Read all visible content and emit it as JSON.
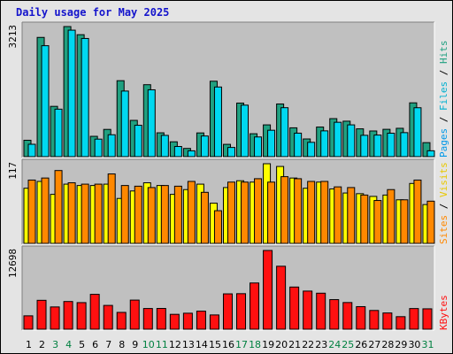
{
  "title": "Daily usage for May 2025",
  "chart_data": [
    {
      "type": "bar",
      "panel": "top",
      "categories": [
        "1",
        "2",
        "3",
        "4",
        "5",
        "6",
        "7",
        "8",
        "9",
        "10",
        "11",
        "12",
        "13",
        "14",
        "15",
        "16",
        "17",
        "18",
        "19",
        "20",
        "21",
        "22",
        "23",
        "24",
        "25",
        "26",
        "27",
        "28",
        "29",
        "30",
        "31"
      ],
      "series": [
        {
          "name": "Hits",
          "color": "#20a080",
          "values": [
            405,
            2945,
            1242,
            3213,
            3012,
            502,
            673,
            1876,
            896,
            1777,
            589,
            367,
            203,
            586,
            1863,
            304,
            1323,
            566,
            785,
            1301,
            712,
            437,
            731,
            939,
            876,
            687,
            634,
            675,
            700,
            1329,
            346
          ]
        },
        {
          "name": "Files",
          "color": "#00d8f0",
          "values": [
            306,
            2740,
            1173,
            3124,
            2919,
            433,
            541,
            1620,
            775,
            1651,
            525,
            251,
            144,
            510,
            1720,
            227,
            1272,
            486,
            652,
            1209,
            580,
            354,
            637,
            849,
            785,
            527,
            533,
            579,
            593,
            1208,
            145
          ]
        }
      ],
      "ylabel_max": "3213",
      "legend_label": "Pages / Files / Hits",
      "legend_colors": {
        "Pages": "#0098e8",
        "Files": "#00b0d0",
        "Hits": "#20a080"
      }
    },
    {
      "type": "bar",
      "panel": "middle",
      "categories": [
        "1",
        "2",
        "3",
        "4",
        "5",
        "6",
        "7",
        "8",
        "9",
        "10",
        "11",
        "12",
        "13",
        "14",
        "15",
        "16",
        "17",
        "18",
        "19",
        "20",
        "21",
        "22",
        "23",
        "24",
        "25",
        "26",
        "27",
        "28",
        "29",
        "30",
        "31"
      ],
      "series": [
        {
          "name": "Visits",
          "color": "#ffff00",
          "values": [
            81,
            91,
            72,
            87,
            85,
            85,
            87,
            66,
            77,
            89,
            85,
            72,
            79,
            87,
            59,
            82,
            92,
            90,
            117,
            113,
            96,
            81,
            90,
            80,
            74,
            73,
            69,
            71,
            64,
            88,
            57
          ]
        },
        {
          "name": "Sites",
          "color": "#ff8800",
          "values": [
            93,
            96,
            107,
            89,
            87,
            87,
            102,
            85,
            84,
            82,
            85,
            84,
            91,
            75,
            48,
            90,
            90,
            95,
            90,
            98,
            95,
            91,
            91,
            83,
            82,
            71,
            63,
            79,
            64,
            93,
            62
          ]
        }
      ],
      "ylabel_max": "117",
      "legend_label": "Sites / Visits",
      "legend_colors": {
        "Sites": "#ff8800",
        "Visits": "#e8c800"
      }
    },
    {
      "type": "bar",
      "panel": "bottom",
      "categories": [
        "1",
        "2",
        "3",
        "4",
        "5",
        "6",
        "7",
        "8",
        "9",
        "10",
        "11",
        "12",
        "13",
        "14",
        "15",
        "16",
        "17",
        "18",
        "19",
        "20",
        "21",
        "22",
        "23",
        "24",
        "25",
        "26",
        "27",
        "28",
        "29",
        "30",
        "31"
      ],
      "series": [
        {
          "name": "KBytes",
          "color": "#ff1010",
          "values": [
            2160,
            4662,
            3592,
            4467,
            4290,
            5624,
            3839,
            2714,
            4696,
            3340,
            3351,
            2400,
            2581,
            2912,
            2302,
            5702,
            5732,
            7455,
            12698,
            10154,
            6800,
            6150,
            5808,
            4773,
            4304,
            3641,
            3026,
            2621,
            2025,
            3334,
            3290
          ]
        }
      ],
      "ylabel_max": "12698",
      "legend_label": "KBytes",
      "legend_colors": {
        "KBytes": "#ff1010"
      }
    }
  ],
  "x_labels": [
    "1",
    "2",
    "3",
    "4",
    "5",
    "6",
    "7",
    "8",
    "9",
    "10",
    "11",
    "12",
    "13",
    "14",
    "15",
    "16",
    "17",
    "18",
    "19",
    "20",
    "21",
    "22",
    "23",
    "24",
    "25",
    "26",
    "27",
    "28",
    "29",
    "30",
    "31"
  ],
  "weekend_days": [
    3,
    4,
    10,
    11,
    17,
    18,
    24,
    25,
    31
  ],
  "colors": {
    "weekday": "#000000",
    "weekend": "#008040",
    "plot_bg": "#c0c0c0",
    "frame_bg": "#e4e4e4"
  }
}
